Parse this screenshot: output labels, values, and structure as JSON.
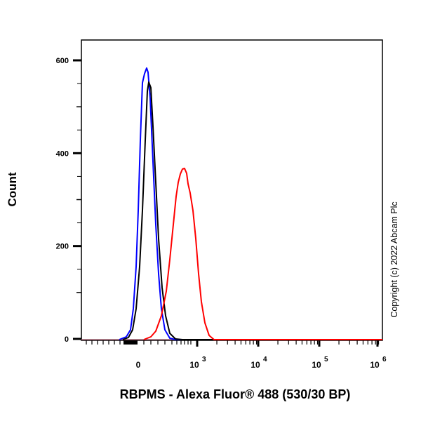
{
  "chart_data": {
    "type": "line",
    "title": "",
    "xlabel": "RBPMS - Alexa Fluor® 488 (530/30 BP)",
    "ylabel": "Count",
    "x_scale": "biexponential (log)",
    "x_tick_labels": [
      "0",
      "10^3",
      "10^4",
      "10^5",
      "10^6"
    ],
    "y_tick_labels": [
      "0",
      "200",
      "400",
      "600"
    ],
    "ylim": [
      0,
      645
    ],
    "grid": false,
    "legend": "none",
    "annotation": "Copyright (c) 2022 Abcam Plc",
    "series": [
      {
        "name": "blue",
        "color": "#0000ff",
        "peak_x": "~150 (near 0-10^3 region)",
        "peak_count": 580,
        "points": [
          [
            -100,
            0
          ],
          [
            0,
            5
          ],
          [
            40,
            60
          ],
          [
            70,
            250
          ],
          [
            90,
            450
          ],
          [
            110,
            545
          ],
          [
            140,
            580
          ],
          [
            165,
            540
          ],
          [
            200,
            380
          ],
          [
            250,
            180
          ],
          [
            320,
            50
          ],
          [
            400,
            8
          ],
          [
            500,
            0
          ]
        ]
      },
      {
        "name": "black",
        "color": "#000000",
        "peak_x": "~200",
        "peak_count": 550,
        "points": [
          [
            -80,
            0
          ],
          [
            20,
            5
          ],
          [
            60,
            60
          ],
          [
            100,
            250
          ],
          [
            130,
            450
          ],
          [
            160,
            530
          ],
          [
            190,
            550
          ],
          [
            220,
            480
          ],
          [
            270,
            300
          ],
          [
            340,
            120
          ],
          [
            430,
            25
          ],
          [
            520,
            3
          ],
          [
            600,
            0
          ]
        ]
      },
      {
        "name": "red",
        "color": "#ff0000",
        "peak_x": "~700",
        "peak_count": 365,
        "points": [
          [
            100,
            0
          ],
          [
            250,
            15
          ],
          [
            350,
            60
          ],
          [
            450,
            150
          ],
          [
            550,
            280
          ],
          [
            650,
            355
          ],
          [
            720,
            365
          ],
          [
            800,
            340
          ],
          [
            900,
            290
          ],
          [
            1100,
            180
          ],
          [
            1400,
            60
          ],
          [
            1700,
            10
          ],
          [
            2000,
            0
          ]
        ]
      }
    ]
  },
  "axes": {
    "y_ticks": [
      {
        "label": "600",
        "value": 600
      },
      {
        "label": "400",
        "value": 400
      },
      {
        "label": "200",
        "value": 200
      },
      {
        "label": "0",
        "value": 0
      }
    ],
    "x_ticks": [
      {
        "base": "0",
        "exp": ""
      },
      {
        "base": "10",
        "exp": "3"
      },
      {
        "base": "10",
        "exp": "4"
      },
      {
        "base": "10",
        "exp": "5"
      },
      {
        "base": "10",
        "exp": "6"
      }
    ]
  },
  "labels": {
    "ylabel": "Count",
    "xlabel": "RBPMS - Alexa Fluor® 488 (530/30 BP)",
    "copyright": "Copyright (c) 2022 Abcam Plc"
  },
  "colors": {
    "blue": "#0000ff",
    "black": "#000000",
    "red": "#ff0000",
    "axis": "#000000"
  }
}
